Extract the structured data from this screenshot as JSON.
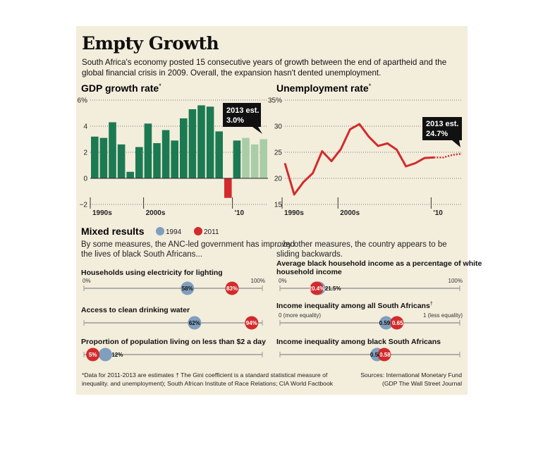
{
  "title": "Empty Growth",
  "subtitle": "South Africa's economy posted 15 consecutive years of growth between the end of apartheid and the global financial crisis in 2009. Overall, the expansion hasn't dented unemployment.",
  "footnote": "*Data for 2011-2013 are estimates  † The Gini coefficient is a standard statistical measure of inequality. and unemployment); South African Institute of Race Relations; CIA World Factbook",
  "sources": "Sources: International Monetary Fund (GDP The Wall Street Journal",
  "colors": {
    "background": "#f3eddc",
    "bar": "#1c7a52",
    "bar_estimate": "#a9cda7",
    "bar_negative": "#d22b2b",
    "line": "#d22b2b",
    "dot_1994": "#7f9fbe",
    "dot_2011": "#d22b2b"
  },
  "chart_data": [
    {
      "type": "bar",
      "title": "GDP growth rate",
      "title_mark": "*",
      "x": [
        1994,
        1995,
        1996,
        1997,
        1998,
        1999,
        2000,
        2001,
        2002,
        2003,
        2004,
        2005,
        2006,
        2007,
        2008,
        2009,
        2010,
        2011,
        2012,
        2013
      ],
      "values": [
        3.2,
        3.1,
        4.3,
        2.6,
        0.5,
        2.4,
        4.2,
        2.7,
        3.7,
        2.9,
        4.6,
        5.3,
        5.6,
        5.5,
        3.6,
        -1.5,
        2.9,
        3.1,
        2.6,
        3.0
      ],
      "estimates": [
        2011,
        2012,
        2013
      ],
      "ylim": [
        -2,
        6
      ],
      "yticks": [
        "6%",
        "4",
        "2",
        "0",
        "−2"
      ],
      "xticks": [
        "1990s",
        "2000s",
        "'10"
      ],
      "annotation": {
        "line1": "2013 est.",
        "line2": "3.0%"
      }
    },
    {
      "type": "line",
      "title": "Unemployment rate",
      "title_mark": "*",
      "x": [
        1994,
        1995,
        1996,
        1997,
        1998,
        1999,
        2000,
        2001,
        2002,
        2003,
        2004,
        2005,
        2006,
        2007,
        2008,
        2009,
        2010,
        2011,
        2012,
        2013
      ],
      "values": [
        22.9,
        16.9,
        19.3,
        21.0,
        25.2,
        23.3,
        25.6,
        29.4,
        30.4,
        28.0,
        26.2,
        26.7,
        25.5,
        22.3,
        22.9,
        23.9,
        24.0,
        24.0,
        24.5,
        24.7
      ],
      "estimates": [
        2011,
        2012,
        2013
      ],
      "ylim": [
        15,
        35
      ],
      "yticks": [
        "35%",
        "30",
        "25",
        "20",
        "15"
      ],
      "xticks": [
        "1990s",
        "2000s",
        "'10"
      ],
      "annotation": {
        "line1": "2013 est.",
        "line2": "24.7%"
      }
    },
    {
      "type": "dot",
      "title": "Mixed results",
      "legend": [
        "1994",
        "2011"
      ],
      "left_heading": "By some measures, the ANC-led government has improved the lives of black South Africans...",
      "right_heading": "...by other measures, the country appears to be sliding backwards.",
      "rows": [
        {
          "label": "Households using electricity for lighting",
          "v1994": 58,
          "v2011": 83,
          "l1994": "58%",
          "l2011": "83%",
          "scale_min": "0%",
          "scale_max": "100%",
          "min": 0,
          "max": 100
        },
        {
          "label": "Access to clean drinking water",
          "v1994": 62,
          "v2011": 94,
          "l1994": "62%",
          "l2011": "94%",
          "min": 0,
          "max": 100
        },
        {
          "label": "Proportion of population living on less than $2 a day",
          "v1994": 12,
          "v2011": 5,
          "l1994": "12%",
          "l2011": "5%",
          "min": 0,
          "max": 100
        },
        {
          "label_line1": "Average black household income as a percentage of white",
          "label_line2": "household income",
          "v1994": 21.5,
          "v2011": 20.4,
          "l1994": "21.5%",
          "l2011": "20.4%",
          "scale_min": "0%",
          "scale_max": "100%",
          "min": 0,
          "max": 100
        },
        {
          "label": "Income inequality among all South Africans",
          "label_mark": "†",
          "v1994": 0.59,
          "v2011": 0.65,
          "l1994": "0.59",
          "l2011": "0.65",
          "scale_min": "0 (more equality)",
          "scale_max": "1 (less equality)",
          "min": 0,
          "max": 1
        },
        {
          "label": "Income inequality among black South Africans",
          "v1994": 0.54,
          "v2011": 0.58,
          "l1994": "0.54",
          "l2011": "0.58",
          "min": 0,
          "max": 1
        }
      ]
    }
  ]
}
